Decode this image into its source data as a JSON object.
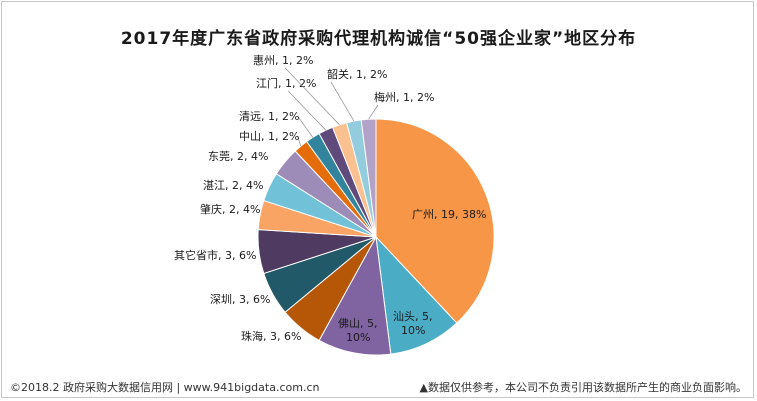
{
  "chart_data": {
    "type": "pie",
    "title": "2017年度广东省政府采购代理机构诚信“50强企业家”地区分布",
    "slices": [
      {
        "name": "广州",
        "value": 19,
        "percent": "38%",
        "color": "#f79646",
        "label": "广州, 19, 38%"
      },
      {
        "name": "汕头",
        "value": 5,
        "percent": "10%",
        "color": "#4bacc6",
        "label": "汕头, 5, 10%"
      },
      {
        "name": "佛山",
        "value": 5,
        "percent": "10%",
        "color": "#8064a2",
        "label": "佛山, 5, 10%"
      },
      {
        "name": "珠海",
        "value": 3,
        "percent": "6%",
        "color": "#b65708",
        "label": "珠海, 3, 6%"
      },
      {
        "name": "深圳",
        "value": 3,
        "percent": "6%",
        "color": "#215968",
        "label": "深圳, 3, 6%"
      },
      {
        "name": "其它省市",
        "value": 3,
        "percent": "6%",
        "color": "#4f3b62",
        "label": "其它省市, 3, 6%"
      },
      {
        "name": "肇庆",
        "value": 2,
        "percent": "4%",
        "color": "#f9a464",
        "label": "肇庆, 2, 4%"
      },
      {
        "name": "湛江",
        "value": 2,
        "percent": "4%",
        "color": "#71c2d8",
        "label": "湛江, 2, 4%"
      },
      {
        "name": "东莞",
        "value": 2,
        "percent": "4%",
        "color": "#9e8cb8",
        "label": "东莞, 2, 4%"
      },
      {
        "name": "中山",
        "value": 1,
        "percent": "2%",
        "color": "#e46c0a",
        "label": "中山, 1, 2%"
      },
      {
        "name": "清远",
        "value": 1,
        "percent": "2%",
        "color": "#31849b",
        "label": "清远, 1, 2%"
      },
      {
        "name": "江门",
        "value": 1,
        "percent": "2%",
        "color": "#604a7b",
        "label": "江门, 1, 2%"
      },
      {
        "name": "惠州",
        "value": 1,
        "percent": "2%",
        "color": "#fac090",
        "label": "惠州, 1, 2%"
      },
      {
        "name": "韶关",
        "value": 1,
        "percent": "2%",
        "color": "#93cddd",
        "label": "韶关, 1, 2%"
      },
      {
        "name": "梅州",
        "value": 1,
        "percent": "2%",
        "color": "#b3a2c7",
        "label": "梅州, 1, 2%"
      }
    ]
  },
  "footer": {
    "left": "©2018.2 政府采购大数据信用网 | www.941bigdata.com.cn",
    "right": "▲数据仅供参考，本公司不负责引用该数据所产生的商业负面影响。"
  }
}
